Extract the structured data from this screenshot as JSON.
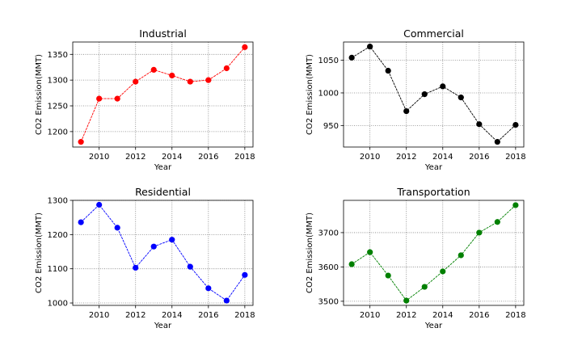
{
  "chart_data": [
    {
      "type": "line",
      "title": "Industrial",
      "xlabel": "Year",
      "ylabel": "CO2 Emission(MMT)",
      "x": [
        2009,
        2010,
        2011,
        2012,
        2013,
        2014,
        2015,
        2016,
        2017,
        2018
      ],
      "values": [
        1180,
        1264,
        1264,
        1297,
        1320,
        1309,
        1297,
        1300,
        1323,
        1364
      ],
      "color": "#ff0000",
      "xlim": [
        2008.55,
        2018.45
      ],
      "ylim": [
        1170,
        1374
      ],
      "xticks": [
        2010,
        2012,
        2014,
        2016,
        2018
      ],
      "yticks": [
        1200,
        1250,
        1300,
        1350
      ],
      "grid": true
    },
    {
      "type": "line",
      "title": "Commercial",
      "xlabel": "Year",
      "ylabel": "CO2 Emission(MMT)",
      "x": [
        2009,
        2010,
        2011,
        2012,
        2013,
        2014,
        2015,
        2016,
        2017,
        2018
      ],
      "values": [
        1054,
        1071,
        1034,
        972,
        998,
        1010,
        993,
        952,
        925,
        951
      ],
      "color": "#000000",
      "xlim": [
        2008.55,
        2018.45
      ],
      "ylim": [
        917,
        1078
      ],
      "xticks": [
        2010,
        2012,
        2014,
        2016,
        2018
      ],
      "yticks": [
        950,
        1000,
        1050
      ],
      "grid": true
    },
    {
      "type": "line",
      "title": "Residential",
      "xlabel": "Year",
      "ylabel": "CO2 Emission(MMT)",
      "x": [
        2009,
        2010,
        2011,
        2012,
        2013,
        2014,
        2015,
        2016,
        2017,
        2018
      ],
      "values": [
        1236,
        1287,
        1220,
        1103,
        1165,
        1185,
        1106,
        1043,
        1007,
        1082
      ],
      "color": "#0000ff",
      "xlim": [
        2008.55,
        2018.45
      ],
      "ylim": [
        993,
        1300
      ],
      "xticks": [
        2010,
        2012,
        2014,
        2016,
        2018
      ],
      "yticks": [
        1000,
        1100,
        1200,
        1300
      ],
      "grid": true
    },
    {
      "type": "line",
      "title": "Transportation",
      "xlabel": "Year",
      "ylabel": "CO2 Emission(MMT)",
      "x": [
        2009,
        2010,
        2011,
        2012,
        2013,
        2014,
        2015,
        2016,
        2017,
        2018
      ],
      "values": [
        3608,
        3643,
        3575,
        3502,
        3542,
        3587,
        3634,
        3700,
        3731,
        3780
      ],
      "color": "#008000",
      "xlim": [
        2008.55,
        2018.45
      ],
      "ylim": [
        3488,
        3794
      ],
      "xticks": [
        2010,
        2012,
        2014,
        2016,
        2018
      ],
      "yticks": [
        3500,
        3600,
        3700
      ],
      "grid": true
    }
  ]
}
